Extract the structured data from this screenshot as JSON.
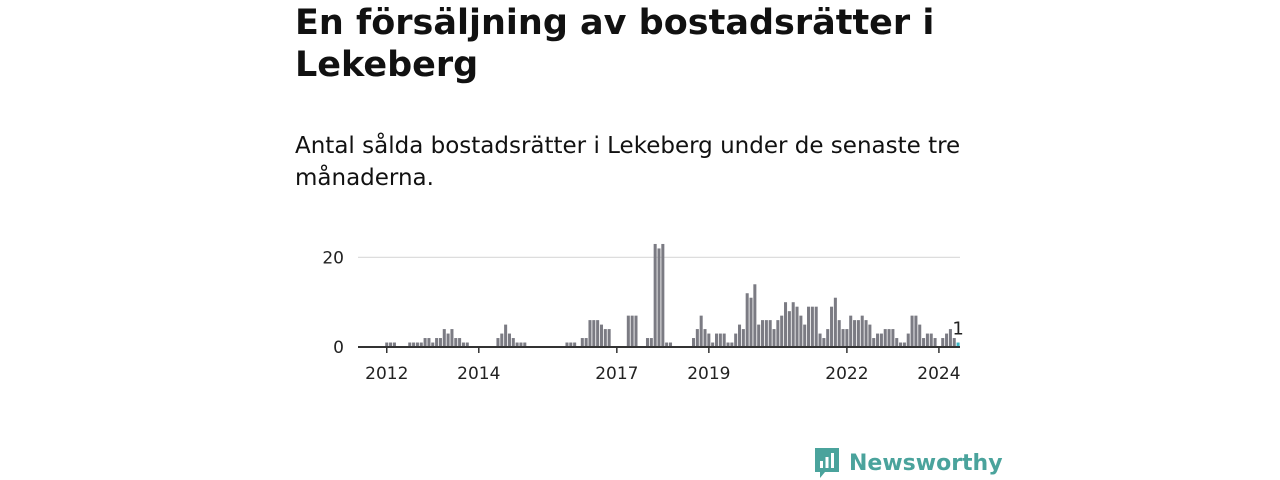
{
  "title": "En försäljning av bostadsrätter i Lekeberg",
  "subtitle": "Antal sålda bostadsrätter i Lekeberg under de senaste tre månaderna.",
  "brand": {
    "name": "Newsworthy",
    "icon": "newsworthy-logo-icon",
    "color": "#4aa39c"
  },
  "colors": {
    "bar": "#7b7b83",
    "highlight": "#3cb8c6",
    "grid": "#dddddd",
    "axis": "#333333"
  },
  "chart_data": {
    "type": "bar",
    "title": "En försäljning av bostadsrätter i Lekeberg",
    "xlabel": "",
    "ylabel": "",
    "x_start": "2011-06",
    "interval": "month",
    "ylim": [
      0,
      25
    ],
    "yticks": [
      0,
      20
    ],
    "xticks": [
      {
        "label": "2012",
        "month": "2012-01"
      },
      {
        "label": "2014",
        "month": "2014-01"
      },
      {
        "label": "2017",
        "month": "2017-01"
      },
      {
        "label": "2019",
        "month": "2019-01"
      },
      {
        "label": "2022",
        "month": "2022-01"
      },
      {
        "label": "2024",
        "month": "2024-01"
      }
    ],
    "values": [
      0,
      0,
      0,
      0,
      0,
      0,
      0,
      1,
      1,
      1,
      0,
      0,
      0,
      1,
      1,
      1,
      1,
      2,
      2,
      1,
      2,
      2,
      4,
      3,
      4,
      2,
      2,
      1,
      1,
      0,
      0,
      0,
      0,
      0,
      0,
      0,
      2,
      3,
      5,
      3,
      2,
      1,
      1,
      1,
      0,
      0,
      0,
      0,
      0,
      0,
      0,
      0,
      0,
      0,
      1,
      1,
      1,
      0,
      2,
      2,
      6,
      6,
      6,
      5,
      4,
      4,
      0,
      0,
      0,
      0,
      7,
      7,
      7,
      0,
      0,
      2,
      2,
      23,
      22,
      23,
      1,
      1,
      0,
      0,
      0,
      0,
      0,
      2,
      4,
      7,
      4,
      3,
      1,
      3,
      3,
      3,
      1,
      1,
      3,
      5,
      4,
      12,
      11,
      14,
      5,
      6,
      6,
      6,
      4,
      6,
      7,
      10,
      8,
      10,
      9,
      7,
      5,
      9,
      9,
      9,
      3,
      2,
      4,
      9,
      11,
      6,
      4,
      4,
      7,
      6,
      6,
      7,
      6,
      5,
      2,
      3,
      3,
      4,
      4,
      4,
      2,
      1,
      1,
      3,
      7,
      7,
      5,
      2,
      3,
      3,
      2,
      0,
      2,
      3,
      4,
      2,
      1
    ],
    "highlight_last": true,
    "annotations": [
      {
        "text": "1",
        "target": "last"
      }
    ]
  }
}
